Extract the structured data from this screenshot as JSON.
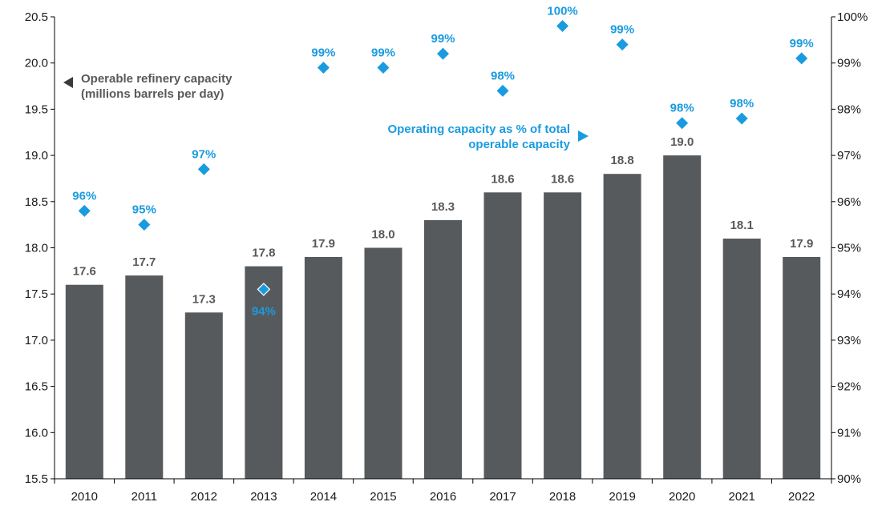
{
  "chart_data": {
    "type": "bar",
    "categories": [
      "2010",
      "2011",
      "2012",
      "2013",
      "2014",
      "2015",
      "2016",
      "2017",
      "2018",
      "2019",
      "2020",
      "2021",
      "2022"
    ],
    "series": [
      {
        "axis": "left",
        "kind": "bar",
        "values": [
          17.6,
          17.7,
          17.3,
          17.8,
          17.9,
          18.0,
          18.3,
          18.6,
          18.6,
          18.8,
          19.0,
          18.1,
          17.9
        ],
        "labels": [
          "17.6",
          "17.7",
          "17.3",
          "17.8",
          "17.9",
          "18.0",
          "18.3",
          "18.6",
          "18.6",
          "18.8",
          "19.0",
          "18.1",
          "17.9"
        ],
        "color": "#575a5d"
      },
      {
        "axis": "right",
        "kind": "scatter",
        "marker": "diamond",
        "values": [
          95.8,
          95.5,
          96.7,
          94.1,
          98.9,
          98.9,
          99.2,
          98.4,
          99.8,
          99.4,
          97.7,
          97.8,
          99.1
        ],
        "labels": [
          "96%",
          "95%",
          "97%",
          "94%",
          "99%",
          "99%",
          "99%",
          "98%",
          "100%",
          "99%",
          "98%",
          "98%",
          "99%"
        ],
        "color": "#1a9be0"
      }
    ],
    "y_left": {
      "min": 15.5,
      "max": 20.5,
      "ticks": [
        "15.5",
        "16.0",
        "16.5",
        "17.0",
        "17.5",
        "18.0",
        "18.5",
        "19.0",
        "19.5",
        "20.0",
        "20.5"
      ]
    },
    "y_right": {
      "min": 90,
      "max": 100,
      "ticks": [
        "90%",
        "91%",
        "92%",
        "93%",
        "94%",
        "95%",
        "96%",
        "97%",
        "98%",
        "99%",
        "100%"
      ]
    },
    "annotations": {
      "left_series": [
        "Operable refinery capacity",
        "(millions barrels per day)"
      ],
      "right_series": [
        "Operating capacity as % of total",
        "operable capacity"
      ]
    },
    "grid": false,
    "colors": {
      "bar": "#575a5d",
      "marker": "#1a9be0",
      "bar_label": "#595959",
      "axis": "#000000"
    }
  }
}
